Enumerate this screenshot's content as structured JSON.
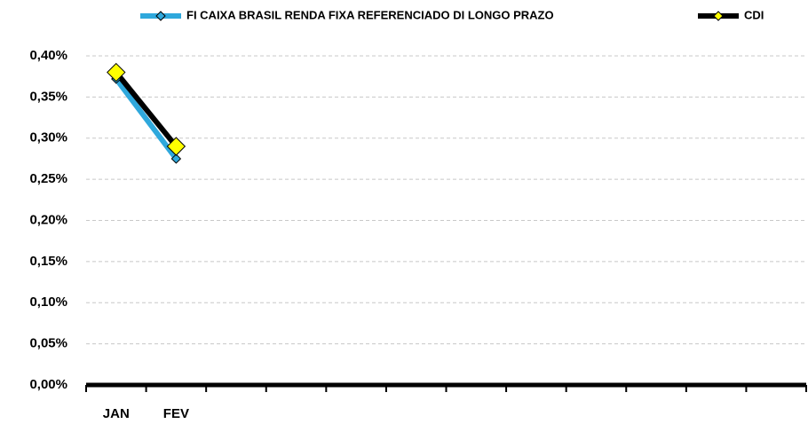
{
  "chart_data": {
    "type": "line",
    "categories": [
      "JAN",
      "FEV",
      null,
      null,
      null,
      null,
      null,
      null,
      null,
      null,
      null,
      null
    ],
    "series": [
      {
        "name": "FI CAIXA BRASIL RENDA FIXA REFERENCIADO DI LONGO PRAZO",
        "color": "#2fa8dc",
        "marker_color": "#2fa8dc",
        "values": [
          0.372,
          0.275,
          null,
          null,
          null,
          null,
          null,
          null,
          null,
          null,
          null,
          null
        ]
      },
      {
        "name": "CDI",
        "color": "#000000",
        "marker_color": "#ffff00",
        "values": [
          0.38,
          0.29,
          null,
          null,
          null,
          null,
          null,
          null,
          null,
          null,
          null,
          null
        ]
      }
    ],
    "ylim": [
      0,
      0.4
    ],
    "yticks": [
      {
        "value": 0,
        "label": "0,00%"
      },
      {
        "value": 0.05,
        "label": "0,05%"
      },
      {
        "value": 0.1,
        "label": "0,10%"
      },
      {
        "value": 0.15,
        "label": "0,15%"
      },
      {
        "value": 0.2,
        "label": "0,20%"
      },
      {
        "value": 0.25,
        "label": "0,25%"
      },
      {
        "value": 0.3,
        "label": "0,30%"
      },
      {
        "value": 0.35,
        "label": "0,35%"
      },
      {
        "value": 0.4,
        "label": "0,40%"
      }
    ],
    "grid": true,
    "legend": "top"
  }
}
